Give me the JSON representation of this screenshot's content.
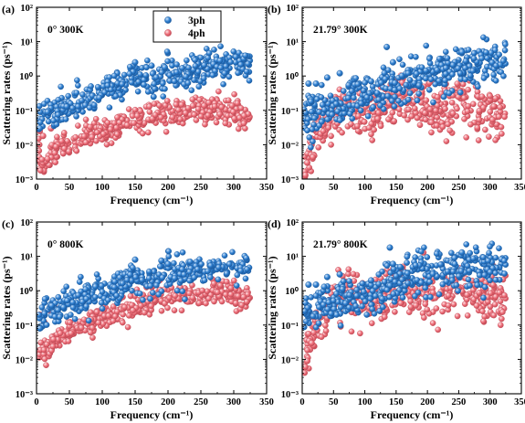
{
  "colors": {
    "ph3": "#2f7fcf",
    "ph3_edge": "#1a5aa0",
    "ph4": "#ee6f7a",
    "ph4_edge": "#c24a55",
    "axis": "#000000"
  },
  "chart_data": [
    {
      "type": "scatter",
      "panel": "(a)",
      "annotation": "0°   300K",
      "xlabel": "Frequency (cm⁻¹)",
      "ylabel": "Scattering rates (ps⁻¹)",
      "xlim": [
        0,
        350
      ],
      "ylim": [
        0.001,
        100
      ],
      "yscale": "log",
      "xticks": [
        "0",
        "50",
        "100",
        "150",
        "200",
        "250",
        "300",
        "350"
      ],
      "yticks": [
        "10⁻³",
        "10⁻²",
        "10⁻¹",
        "10⁰",
        "10¹",
        "10²"
      ],
      "legend": {
        "position": "top-center",
        "entries": [
          "3ph",
          "4ph"
        ]
      },
      "series": [
        {
          "name": "3ph",
          "trend": [
            [
              3,
              0.07
            ],
            [
              25,
              0.09
            ],
            [
              50,
              0.12
            ],
            [
              75,
              0.2
            ],
            [
              100,
              0.28
            ],
            [
              125,
              0.4
            ],
            [
              140,
              0.9
            ],
            [
              160,
              1.0
            ],
            [
              180,
              0.6
            ],
            [
              200,
              1.5
            ],
            [
              225,
              1.0
            ],
            [
              250,
              1.8
            ],
            [
              275,
              2.1
            ],
            [
              300,
              2.4
            ],
            [
              325,
              2.1
            ]
          ],
          "spread": 0.22,
          "outliers": [
            [
              5,
              0.03
            ],
            [
              150,
              2.5
            ],
            [
              175,
              2.0
            ],
            [
              195,
              1.8
            ]
          ]
        },
        {
          "name": "4ph",
          "trend": [
            [
              3,
              0.005
            ],
            [
              10,
              0.002
            ],
            [
              25,
              0.006
            ],
            [
              50,
              0.01
            ],
            [
              75,
              0.018
            ],
            [
              100,
              0.025
            ],
            [
              125,
              0.035
            ],
            [
              150,
              0.05
            ],
            [
              175,
              0.07
            ],
            [
              200,
              0.08
            ],
            [
              225,
              0.09
            ],
            [
              250,
              0.1
            ],
            [
              270,
              0.12
            ],
            [
              300,
              0.09
            ],
            [
              325,
              0.07
            ]
          ],
          "spread": 0.18,
          "outliers": [
            [
              5,
              0.025
            ],
            [
              22,
              0.03
            ],
            [
              30,
              0.04
            ],
            [
              10,
              0.018
            ]
          ]
        }
      ]
    },
    {
      "type": "scatter",
      "panel": "(b)",
      "annotation": "21.79°   300K",
      "xlabel": "Frequency (cm⁻¹)",
      "ylabel": "Scattering rates (ps⁻¹)",
      "xlim": [
        0,
        350
      ],
      "ylim": [
        0.001,
        100
      ],
      "yscale": "log",
      "xticks": [
        "0",
        "50",
        "100",
        "150",
        "200",
        "250",
        "300",
        "350"
      ],
      "yticks": [
        "10⁻³",
        "10⁻²",
        "10⁻¹",
        "10⁰",
        "10¹",
        "10²"
      ],
      "series": [
        {
          "name": "3ph",
          "trend": [
            [
              3,
              0.07
            ],
            [
              25,
              0.1
            ],
            [
              50,
              0.15
            ],
            [
              75,
              0.2
            ],
            [
              100,
              0.25
            ],
            [
              125,
              0.35
            ],
            [
              150,
              0.6
            ],
            [
              175,
              0.9
            ],
            [
              200,
              1.2
            ],
            [
              225,
              1.5
            ],
            [
              250,
              1.7
            ],
            [
              275,
              2.0
            ],
            [
              300,
              2.4
            ],
            [
              325,
              2.1
            ]
          ],
          "spread": 0.3,
          "outliers": [
            [
              10,
              0.6
            ],
            [
              40,
              0.9
            ],
            [
              60,
              1.2
            ],
            [
              135,
              7.0
            ],
            [
              145,
              2.5
            ],
            [
              255,
              5.0
            ],
            [
              22,
              0.6
            ],
            [
              110,
              0.7
            ]
          ]
        },
        {
          "name": "4ph",
          "trend": [
            [
              3,
              0.002
            ],
            [
              10,
              0.005
            ],
            [
              25,
              0.02
            ],
            [
              50,
              0.06
            ],
            [
              65,
              0.12
            ],
            [
              90,
              0.07
            ],
            [
              110,
              0.06
            ],
            [
              130,
              0.1
            ],
            [
              150,
              0.2
            ],
            [
              165,
              0.28
            ],
            [
              180,
              0.12
            ],
            [
              200,
              0.1
            ],
            [
              225,
              0.12
            ],
            [
              250,
              0.15
            ],
            [
              275,
              0.12
            ],
            [
              300,
              0.09
            ],
            [
              325,
              0.07
            ]
          ],
          "spread": 0.35,
          "outliers": [
            [
              5,
              0.0013
            ],
            [
              8,
              0.003
            ],
            [
              15,
              0.01
            ]
          ]
        }
      ]
    },
    {
      "type": "scatter",
      "panel": "(c)",
      "annotation": "0°   800K",
      "xlabel": "Frequency (cm⁻¹)",
      "ylabel": "Scattering rates (ps⁻¹)",
      "xlim": [
        0,
        350
      ],
      "ylim": [
        0.001,
        100
      ],
      "yscale": "log",
      "xticks": [
        "0",
        "50",
        "100",
        "150",
        "200",
        "250",
        "300",
        "350"
      ],
      "yticks": [
        "10⁻³",
        "10⁻²",
        "10⁻¹",
        "10⁰",
        "10¹",
        "10²"
      ],
      "series": [
        {
          "name": "3ph",
          "trend": [
            [
              3,
              0.2
            ],
            [
              25,
              0.3
            ],
            [
              50,
              0.5
            ],
            [
              75,
              0.7
            ],
            [
              100,
              1.0
            ],
            [
              125,
              1.3
            ],
            [
              140,
              3.0
            ],
            [
              160,
              2.0
            ],
            [
              180,
              1.5
            ],
            [
              200,
              4.0
            ],
            [
              225,
              3.0
            ],
            [
              250,
              4.5
            ],
            [
              275,
              5.0
            ],
            [
              300,
              5.5
            ],
            [
              325,
              5.0
            ]
          ],
          "spread": 0.22,
          "outliers": [
            [
              5,
              0.08
            ],
            [
              150,
              8.0
            ],
            [
              190,
              7.5
            ],
            [
              200,
              6.0
            ]
          ]
        },
        {
          "name": "4ph",
          "trend": [
            [
              3,
              0.02
            ],
            [
              10,
              0.015
            ],
            [
              25,
              0.03
            ],
            [
              50,
              0.06
            ],
            [
              75,
              0.1
            ],
            [
              100,
              0.15
            ],
            [
              125,
              0.25
            ],
            [
              150,
              0.35
            ],
            [
              175,
              0.5
            ],
            [
              200,
              0.6
            ],
            [
              225,
              0.65
            ],
            [
              250,
              0.7
            ],
            [
              270,
              0.9
            ],
            [
              300,
              0.7
            ],
            [
              325,
              0.5
            ]
          ],
          "spread": 0.18,
          "outliers": [
            [
              5,
              0.2
            ],
            [
              22,
              0.25
            ],
            [
              30,
              0.3
            ],
            [
              12,
              0.12
            ]
          ]
        }
      ]
    },
    {
      "type": "scatter",
      "panel": "(d)",
      "annotation": "21.79°   800K",
      "xlabel": "Frequency (cm⁻¹)",
      "ylabel": "Scattering rates (ps⁻¹)",
      "xlim": [
        0,
        350
      ],
      "ylim": [
        0.001,
        100
      ],
      "yscale": "log",
      "xticks": [
        "0",
        "50",
        "100",
        "150",
        "200",
        "250",
        "300",
        "350"
      ],
      "yticks": [
        "10⁻³",
        "10⁻²",
        "10⁻¹",
        "10⁰",
        "10¹",
        "10²"
      ],
      "series": [
        {
          "name": "3ph",
          "trend": [
            [
              3,
              0.2
            ],
            [
              25,
              0.3
            ],
            [
              50,
              0.5
            ],
            [
              75,
              0.6
            ],
            [
              100,
              0.7
            ],
            [
              125,
              1.0
            ],
            [
              150,
              1.8
            ],
            [
              175,
              2.5
            ],
            [
              200,
              3.5
            ],
            [
              225,
              4.0
            ],
            [
              250,
              4.5
            ],
            [
              275,
              5.0
            ],
            [
              300,
              5.5
            ],
            [
              325,
              5.0
            ]
          ],
          "spread": 0.3,
          "outliers": [
            [
              10,
              1.5
            ],
            [
              40,
              2.5
            ],
            [
              60,
              3.0
            ],
            [
              140,
              18.0
            ],
            [
              145,
              6.0
            ],
            [
              255,
              13.0
            ],
            [
              22,
              1.5
            ],
            [
              110,
              2.0
            ],
            [
              35,
              1.3
            ]
          ]
        },
        {
          "name": "4ph",
          "trend": [
            [
              3,
              0.01
            ],
            [
              10,
              0.03
            ],
            [
              25,
              0.1
            ],
            [
              50,
              0.4
            ],
            [
              65,
              0.8
            ],
            [
              90,
              0.5
            ],
            [
              110,
              0.4
            ],
            [
              130,
              0.7
            ],
            [
              150,
              1.0
            ],
            [
              165,
              1.2
            ],
            [
              180,
              0.8
            ],
            [
              200,
              0.7
            ],
            [
              225,
              0.9
            ],
            [
              250,
              1.0
            ],
            [
              275,
              0.8
            ],
            [
              300,
              0.7
            ],
            [
              325,
              0.5
            ]
          ],
          "spread": 0.35,
          "outliers": [
            [
              5,
              0.006
            ],
            [
              8,
              0.009
            ],
            [
              15,
              0.03
            ]
          ]
        }
      ]
    }
  ]
}
